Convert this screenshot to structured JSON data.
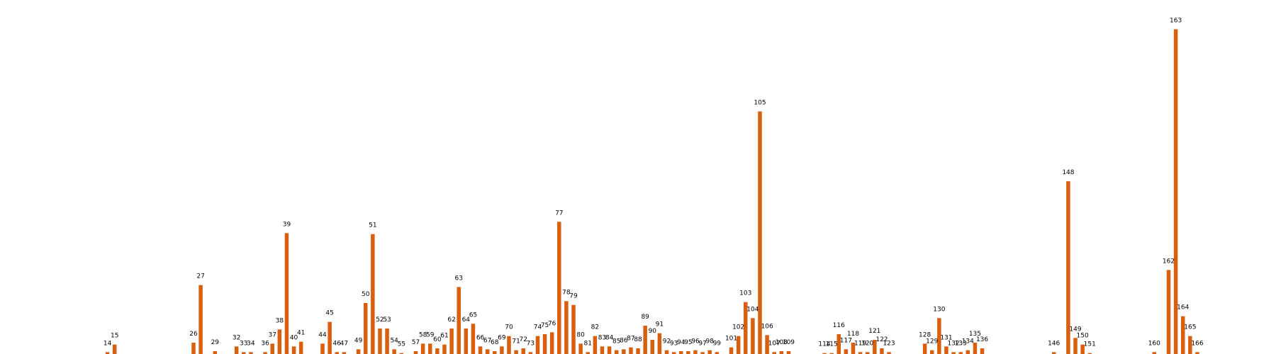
{
  "chart_data": {
    "type": "bar",
    "title": "",
    "xlabel": "",
    "ylabel": "",
    "categories": [
      "14",
      "15",
      "26",
      "27",
      "29",
      "32",
      "33",
      "34",
      "36",
      "37",
      "38",
      "39",
      "40",
      "41",
      "44",
      "45",
      "46",
      "47",
      "49",
      "50",
      "51",
      "52",
      "53",
      "54",
      "55",
      "57",
      "58",
      "59",
      "60",
      "61",
      "62",
      "63",
      "64",
      "65",
      "66",
      "67",
      "68",
      "69",
      "70",
      "71",
      "72",
      "73",
      "74",
      "75",
      "76",
      "77",
      "78",
      "79",
      "80",
      "81",
      "82",
      "83",
      "84",
      "85",
      "86",
      "87",
      "88",
      "89",
      "90",
      "91",
      "92",
      "93",
      "94",
      "95",
      "96",
      "97",
      "98",
      "99",
      "101",
      "102",
      "103",
      "104",
      "105",
      "106",
      "107",
      "108",
      "109",
      "114",
      "115",
      "116",
      "117",
      "118",
      "119",
      "120",
      "121",
      "122",
      "123",
      "128",
      "129",
      "130",
      "131",
      "132",
      "133",
      "134",
      "135",
      "136",
      "146",
      "148",
      "149",
      "150",
      "151",
      "160",
      "162",
      "163",
      "164",
      "165",
      "166"
    ],
    "x": [
      14,
      15,
      26,
      27,
      29,
      32,
      33,
      34,
      36,
      37,
      38,
      39,
      40,
      41,
      44,
      45,
      46,
      47,
      49,
      50,
      51,
      52,
      53,
      54,
      55,
      57,
      58,
      59,
      60,
      61,
      62,
      63,
      64,
      65,
      66,
      67,
      68,
      69,
      70,
      71,
      72,
      73,
      74,
      75,
      76,
      77,
      78,
      79,
      80,
      81,
      82,
      83,
      84,
      85,
      86,
      87,
      88,
      89,
      90,
      91,
      92,
      93,
      94,
      95,
      96,
      97,
      98,
      99,
      101,
      102,
      103,
      104,
      105,
      106,
      107,
      108,
      109,
      114,
      115,
      116,
      117,
      118,
      119,
      120,
      121,
      122,
      123,
      128,
      129,
      130,
      131,
      132,
      133,
      134,
      135,
      136,
      146,
      148,
      149,
      150,
      151,
      160,
      162,
      163,
      164,
      165,
      166
    ],
    "values": [
      2,
      10,
      12,
      73,
      3,
      8,
      2,
      2,
      2,
      11,
      26,
      128,
      8,
      13,
      11,
      34,
      2,
      2,
      5,
      54,
      127,
      27,
      27,
      5,
      1,
      3,
      11,
      11,
      6,
      10,
      27,
      71,
      27,
      32,
      8,
      5,
      3,
      8,
      19,
      4,
      6,
      2,
      19,
      21,
      23,
      140,
      56,
      52,
      11,
      2,
      19,
      8,
      8,
      4,
      5,
      7,
      6,
      30,
      15,
      22,
      4,
      2,
      3,
      3,
      4,
      2,
      4,
      2,
      7,
      19,
      55,
      38,
      257,
      20,
      2,
      3,
      3,
      1,
      1,
      21,
      5,
      12,
      2,
      2,
      15,
      6,
      2,
      11,
      4,
      38,
      8,
      2,
      2,
      4,
      12,
      6,
      2,
      183,
      17,
      10,
      1,
      2,
      89,
      344,
      40,
      19,
      2
    ],
    "ylim": [
      0,
      360
    ],
    "grid": false,
    "show_axes": false,
    "bar_color": "#d95f0e"
  }
}
